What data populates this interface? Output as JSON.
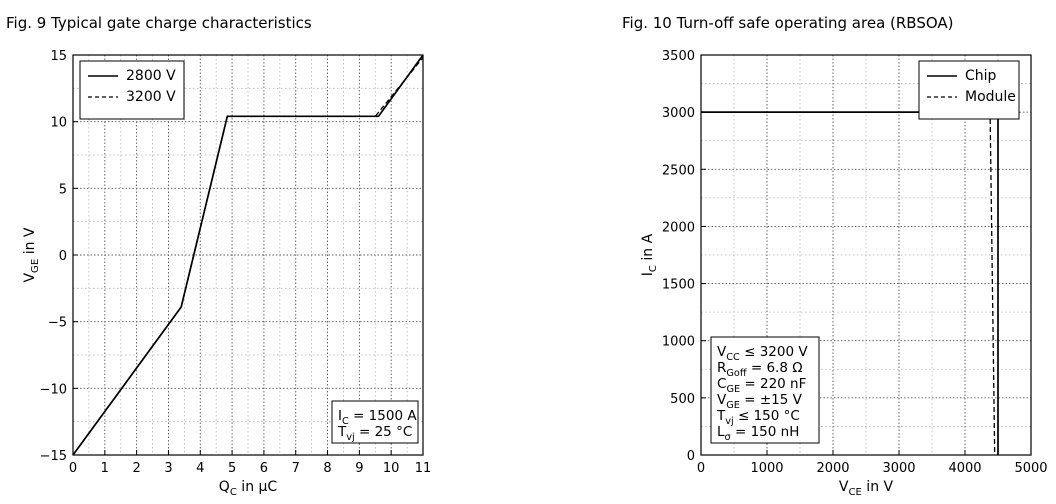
{
  "chart_data": [
    {
      "type": "line",
      "title": "Fig. 9  Typical gate charge characteristics",
      "xlabel": {
        "main": "Q",
        "sub": "C",
        "rest": " in μC"
      },
      "ylabel": {
        "main": "V",
        "sub": "GE",
        "rest": " in V"
      },
      "xlim": [
        0,
        11
      ],
      "ylim": [
        -15,
        15
      ],
      "xticks": [
        0,
        1,
        2,
        3,
        4,
        5,
        6,
        7,
        8,
        9,
        10,
        11
      ],
      "yticks": [
        -15,
        -10,
        -5,
        0,
        5,
        10,
        15
      ],
      "grid": true,
      "legend_position": "top-left",
      "series": [
        {
          "name": "2800 V",
          "dash": "solid",
          "points": [
            [
              0,
              -15
            ],
            [
              3.4,
              -3.9
            ],
            [
              4.85,
              10.4
            ],
            [
              9.6,
              10.4
            ],
            [
              11,
              15
            ]
          ]
        },
        {
          "name": "3200 V",
          "dash": "dashed",
          "points": [
            [
              0,
              -15
            ],
            [
              3.4,
              -3.9
            ],
            [
              4.85,
              10.4
            ],
            [
              9.5,
              10.4
            ],
            [
              11,
              14.8
            ]
          ]
        }
      ],
      "annotation": [
        {
          "main": "I",
          "sub": "C",
          "rest": " = 1500 A"
        },
        {
          "main": "T",
          "sub": "vj",
          "rest": " = 25 °C"
        }
      ],
      "annotation_position": "bottom-right"
    },
    {
      "type": "line",
      "title": "Fig. 10  Turn-off safe operating area (RBSOA)",
      "xlabel": {
        "main": "V",
        "sub": "CE",
        "rest": " in V"
      },
      "ylabel": {
        "main": "I",
        "sub": "C",
        "rest": " in A"
      },
      "xlim": [
        0,
        5000
      ],
      "ylim": [
        0,
        3500
      ],
      "xticks": [
        0,
        1000,
        2000,
        3000,
        4000,
        5000
      ],
      "yticks": [
        0,
        500,
        1000,
        1500,
        2000,
        2500,
        3000,
        3500
      ],
      "grid": true,
      "legend_position": "top-right",
      "series": [
        {
          "name": "Chip",
          "dash": "solid",
          "points": [
            [
              0,
              3000
            ],
            [
              4500,
              3000
            ],
            [
              4500,
              0
            ]
          ]
        },
        {
          "name": "Module",
          "dash": "dashed",
          "points": [
            [
              0,
              3000
            ],
            [
              4380,
              3000
            ],
            [
              4450,
              0
            ]
          ]
        }
      ],
      "annotation": [
        {
          "main": "V",
          "sub": "CC",
          "rest": " ≤ 3200 V"
        },
        {
          "main": "R",
          "sub": "Goff",
          "rest": " = 6.8 Ω"
        },
        {
          "main": "C",
          "sub": "GE",
          "rest": " = 220 nF"
        },
        {
          "main": "V",
          "sub": "GE",
          "rest": " = ±15 V"
        },
        {
          "main": "T",
          "sub": "vj",
          "rest": " ≤ 150 °C"
        },
        {
          "main": "L",
          "sub": "σ",
          "rest": " = 150 nH"
        }
      ],
      "annotation_position": "bottom-left"
    }
  ]
}
